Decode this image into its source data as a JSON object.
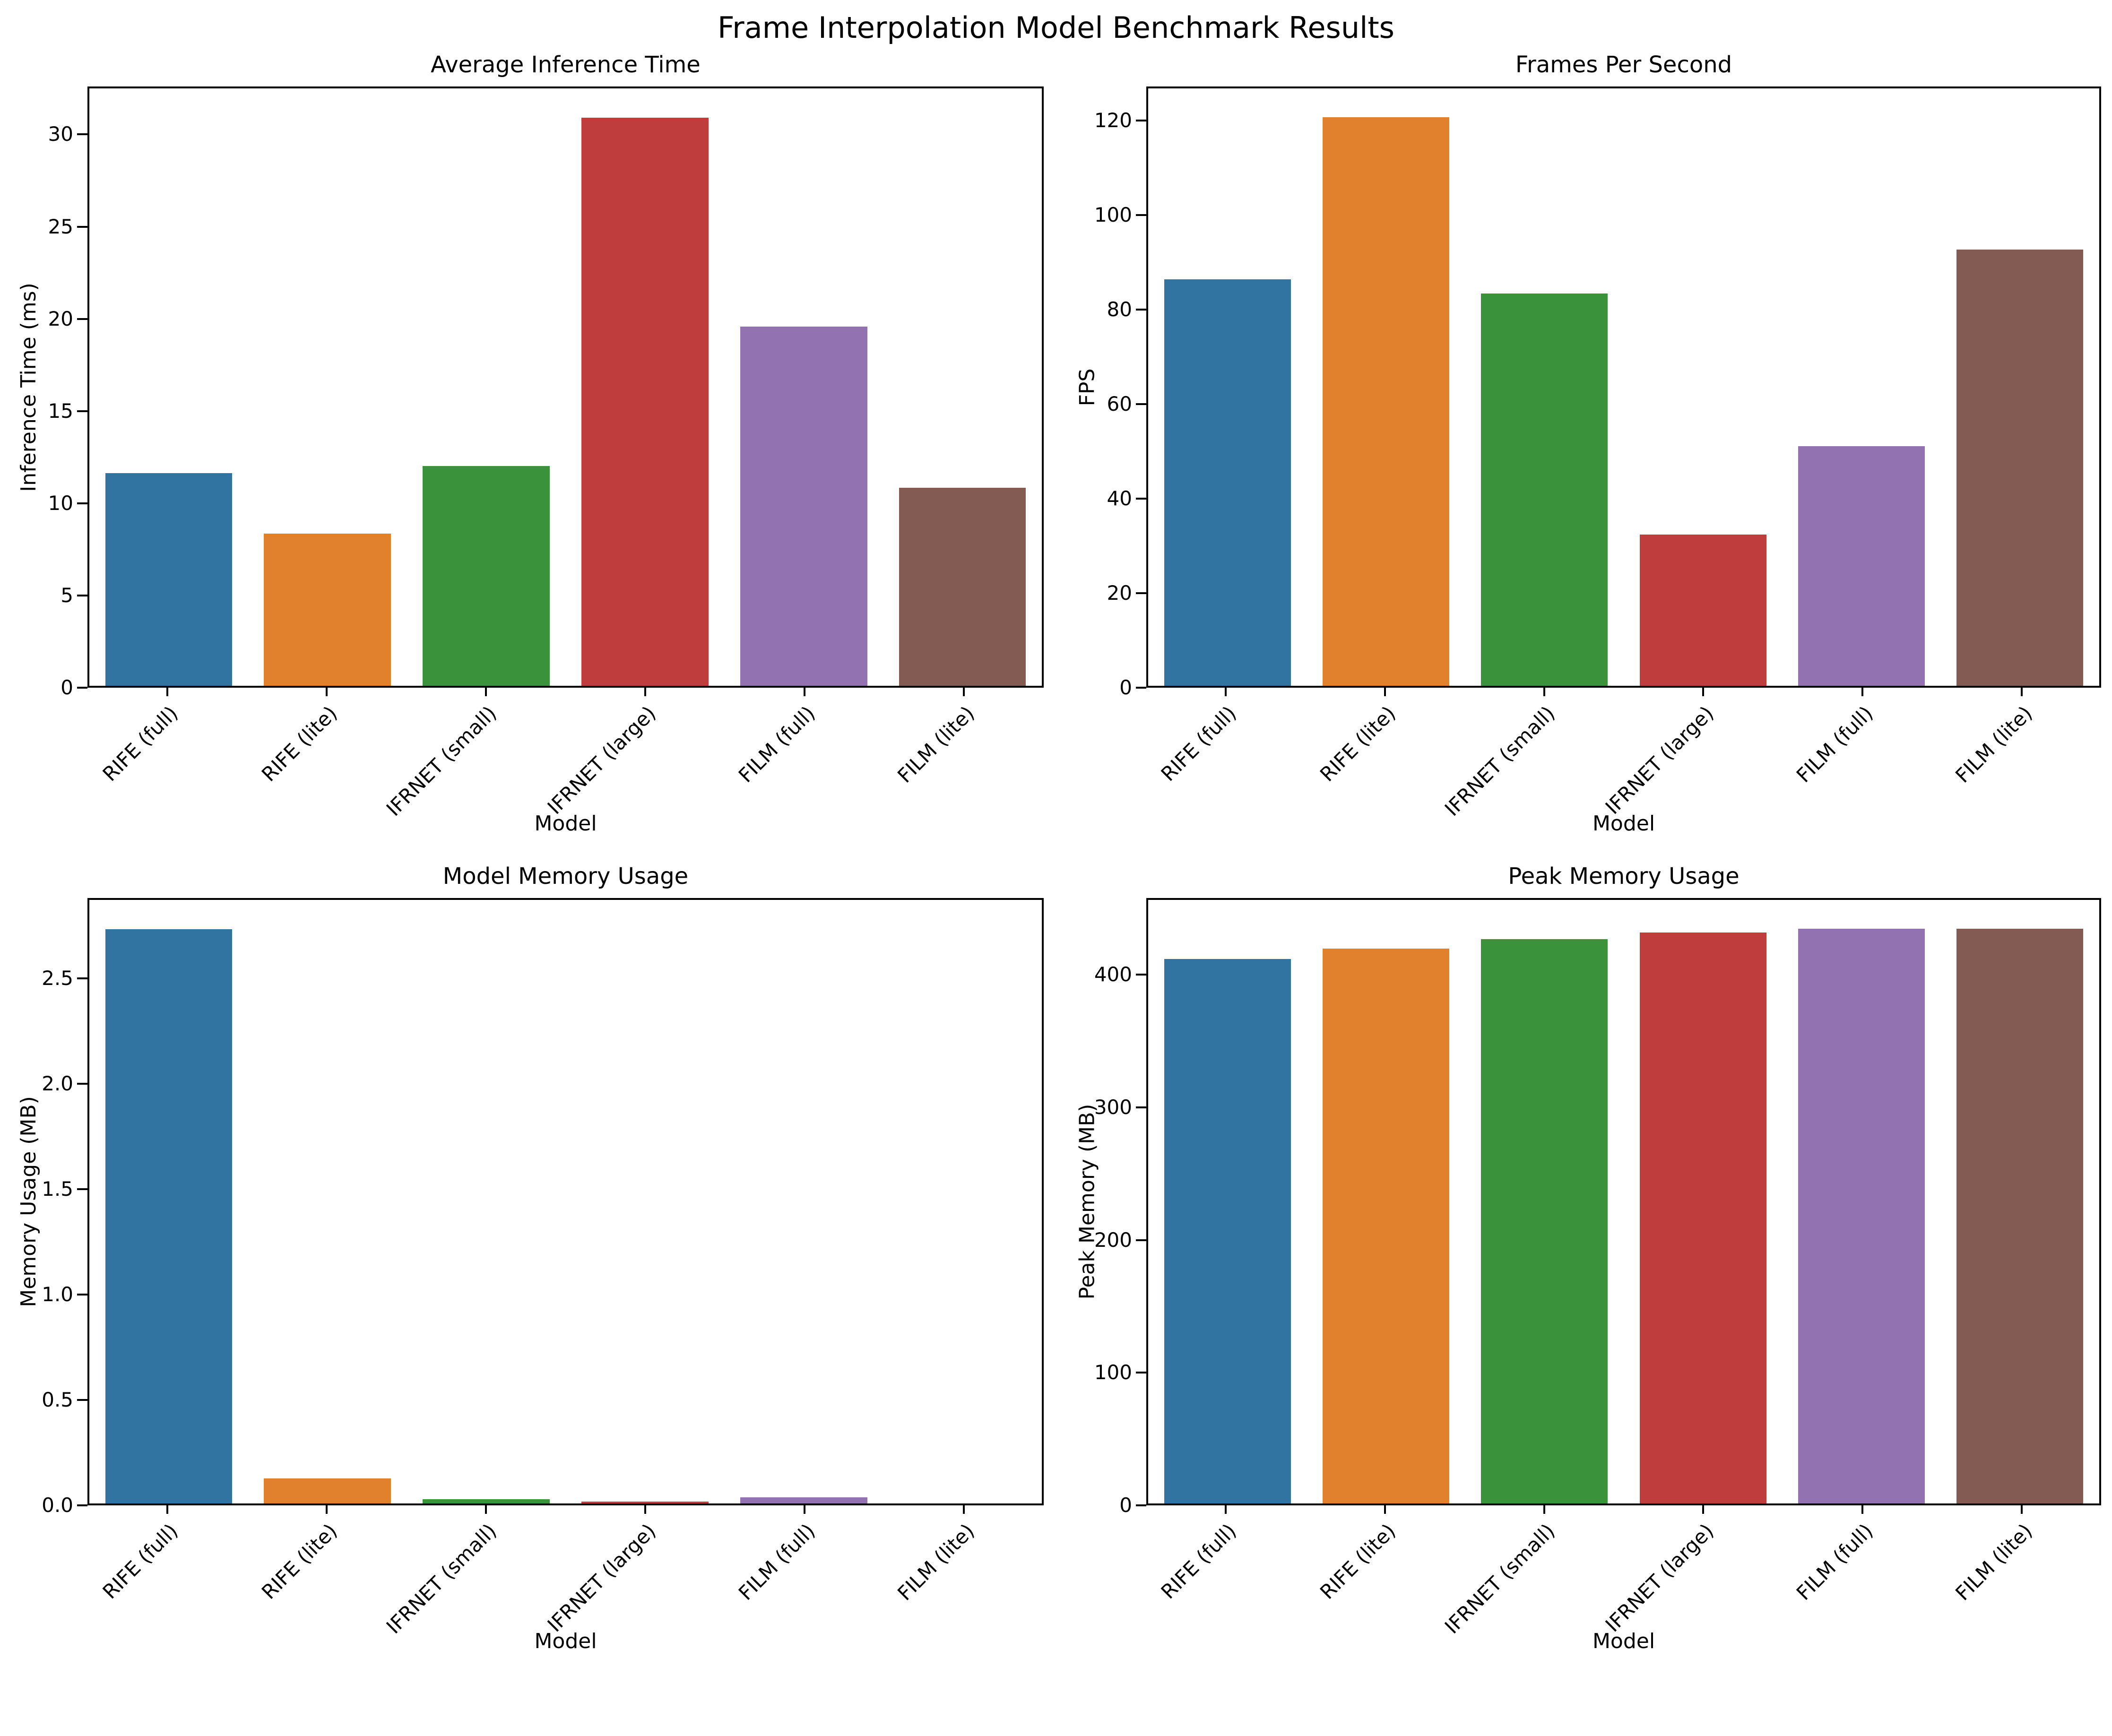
{
  "figure": {
    "title": "Frame Interpolation Model Benchmark Results"
  },
  "palette": [
    "#3274a1",
    "#e1812c",
    "#3a923a",
    "#c03d3e",
    "#9372b2",
    "#845b53"
  ],
  "chart_data": [
    {
      "type": "bar",
      "title": "Average Inference Time",
      "xlabel": "Model",
      "ylabel": "Inference Time (ms)",
      "categories": [
        "RIFE (full)",
        "RIFE (lite)",
        "IFRNET (small)",
        "IFRNET (large)",
        "FILM (full)",
        "FILM (lite)"
      ],
      "values": [
        11.6,
        8.3,
        12.0,
        31.0,
        19.6,
        10.8
      ],
      "ytick_values": [
        0,
        5,
        10,
        15,
        20,
        25,
        30
      ],
      "ytick_labels": [
        "0",
        "5",
        "10",
        "15",
        "20",
        "25",
        "30"
      ],
      "ylim": [
        0,
        32.6
      ],
      "grid": false,
      "legend": null
    },
    {
      "type": "bar",
      "title": "Frames Per Second",
      "xlabel": "Model",
      "ylabel": "FPS",
      "categories": [
        "RIFE (full)",
        "RIFE (lite)",
        "IFRNET (small)",
        "IFRNET (large)",
        "FILM (full)",
        "FILM (lite)"
      ],
      "values": [
        86.5,
        121.1,
        83.5,
        32.2,
        51.0,
        92.9
      ],
      "ytick_values": [
        0,
        20,
        40,
        60,
        80,
        100,
        120
      ],
      "ytick_labels": [
        "0",
        "20",
        "40",
        "60",
        "80",
        "100",
        "120"
      ],
      "ylim": [
        0,
        127.2
      ],
      "grid": false,
      "legend": null
    },
    {
      "type": "bar",
      "title": "Model Memory Usage",
      "xlabel": "Model",
      "ylabel": "Memory Usage (MB)",
      "categories": [
        "RIFE (full)",
        "RIFE (lite)",
        "IFRNET (small)",
        "IFRNET (large)",
        "FILM (full)",
        "FILM (lite)"
      ],
      "values": [
        2.74,
        0.12,
        0.02,
        0.01,
        0.03,
        0.0
      ],
      "ytick_values": [
        0,
        0.5,
        1.0,
        1.5,
        2.0,
        2.5
      ],
      "ytick_labels": [
        "0.0",
        "0.5",
        "1.0",
        "1.5",
        "2.0",
        "2.5"
      ],
      "ylim": [
        0,
        2.88
      ],
      "grid": false,
      "legend": null
    },
    {
      "type": "bar",
      "title": "Peak Memory Usage",
      "xlabel": "Model",
      "ylabel": "Peak Memory (MB)",
      "categories": [
        "RIFE (full)",
        "RIFE (lite)",
        "IFRNET (small)",
        "IFRNET (large)",
        "FILM (full)",
        "FILM (lite)"
      ],
      "values": [
        413,
        421,
        428,
        433,
        436,
        436
      ],
      "ytick_values": [
        0,
        100,
        200,
        300,
        400
      ],
      "ytick_labels": [
        "0",
        "100",
        "200",
        "300",
        "400"
      ],
      "ylim": [
        0,
        457.8
      ],
      "grid": false,
      "legend": null
    }
  ]
}
